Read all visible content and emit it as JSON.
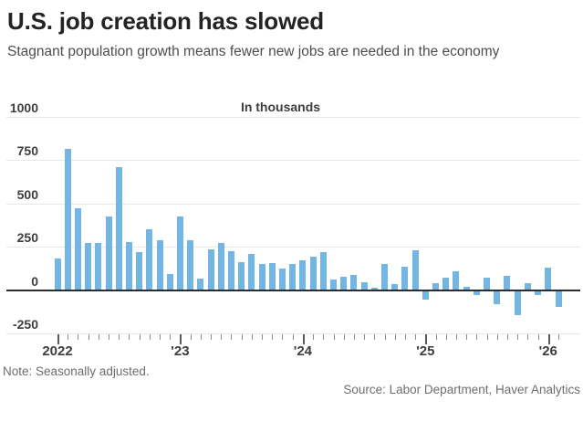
{
  "header": {
    "title": "U.S. job creation has slowed",
    "subtitle": "Stagnant population growth means fewer new jobs are needed in the economy"
  },
  "footer": {
    "note": "Note: Seasonally adjusted.",
    "source": "Source: Labor Department, Haver Analytics"
  },
  "chart_data": {
    "type": "bar",
    "title": "In thousands",
    "xlabel": "",
    "ylabel": "In thousands",
    "grid": true,
    "legend": "none",
    "ylim": [
      -250,
      1000
    ],
    "yticks": [
      1000,
      750,
      500,
      250,
      0,
      -250
    ],
    "year_labels": [
      "2022",
      "'23",
      "'24",
      "'25",
      "'26"
    ],
    "bar_color": "#73b6e3",
    "grid_color": "#e8e8e8",
    "zero_line_color": "#2e2e2e",
    "x": [
      "2022-01",
      "2022-02",
      "2022-03",
      "2022-04",
      "2022-05",
      "2022-06",
      "2022-07",
      "2022-08",
      "2022-09",
      "2022-10",
      "2022-11",
      "2022-12",
      "2023-01",
      "2023-02",
      "2023-03",
      "2023-04",
      "2023-05",
      "2023-06",
      "2023-07",
      "2023-08",
      "2023-09",
      "2023-10",
      "2023-11",
      "2023-12",
      "2024-01",
      "2024-02",
      "2024-03",
      "2024-04",
      "2024-05",
      "2024-06",
      "2024-07",
      "2024-08",
      "2024-09",
      "2024-10",
      "2024-11",
      "2024-12",
      "2025-01",
      "2025-02",
      "2025-03",
      "2025-04",
      "2025-05",
      "2025-06",
      "2025-07",
      "2025-08",
      "2025-09",
      "2025-10",
      "2025-11",
      "2025-12",
      "2026-01",
      "2026-02"
    ],
    "values": [
      180,
      815,
      470,
      270,
      270,
      425,
      710,
      275,
      220,
      350,
      290,
      90,
      425,
      285,
      65,
      235,
      270,
      225,
      160,
      210,
      150,
      155,
      125,
      150,
      170,
      195,
      220,
      60,
      75,
      85,
      45,
      15,
      150,
      35,
      135,
      230,
      -50,
      40,
      70,
      110,
      18,
      -25,
      70,
      -75,
      80,
      -140,
      42,
      -25,
      128,
      -92
    ]
  }
}
